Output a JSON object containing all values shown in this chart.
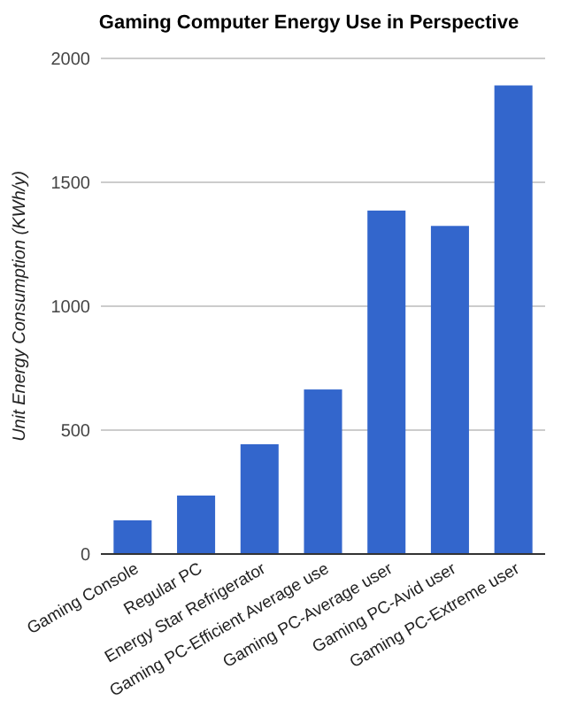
{
  "chart_data": {
    "type": "bar",
    "title": "Gaming Computer Energy Use in Perspective",
    "ylabel": "Unit Energy Consumption (KWh/y)",
    "categories": [
      "Gaming Console",
      "Regular PC",
      "Energy Star Refrigerator",
      "Gaming PC-Efficient Average use",
      "Gaming PC-Average user",
      "Gaming PC-Avid user",
      "Gaming PC-Extreme user"
    ],
    "values": [
      136,
      236,
      443,
      664,
      1386,
      1324,
      1891
    ],
    "color": "#3366cc",
    "ylim": [
      0,
      2000
    ],
    "yticks": [
      0,
      500,
      1000,
      1500,
      2000
    ],
    "grid": "y"
  }
}
